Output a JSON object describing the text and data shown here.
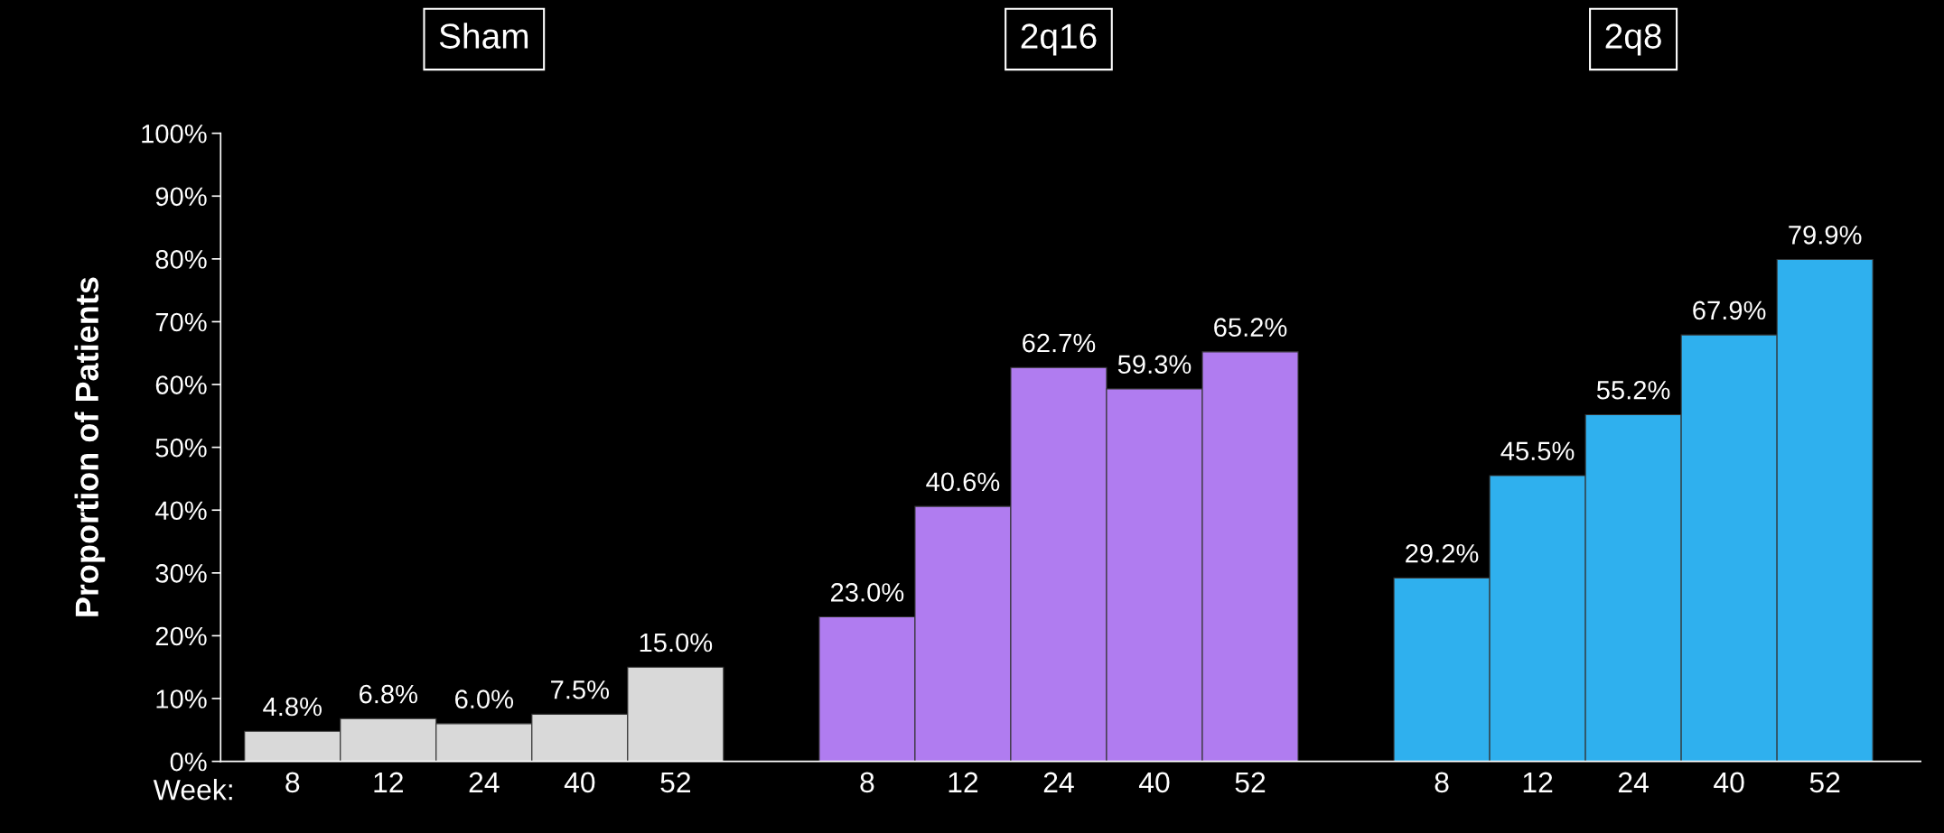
{
  "chart_data": {
    "type": "bar",
    "ylabel": "Proportion of Patients",
    "categories": [
      "8",
      "12",
      "24",
      "40",
      "52",
      null,
      "8",
      "12",
      "24",
      "40",
      "52",
      null,
      "8",
      "12",
      "24",
      "40",
      "52"
    ],
    "values": [
      4.8,
      6.8,
      6.0,
      7.5,
      15.0,
      null,
      23.0,
      40.6,
      62.7,
      59.3,
      65.2,
      null,
      29.2,
      45.5,
      55.2,
      67.9,
      79.9
    ],
    "colors": [
      "#d9d9d9",
      "#d9d9d9",
      "#d9d9d9",
      "#d9d9d9",
      "#d9d9d9",
      null,
      "#b07cf0",
      "#b07cf0",
      "#b07cf0",
      "#b07cf0",
      "#b07cf0",
      null,
      "#2fb0ee",
      "#2fb0ee",
      "#2fb0ee",
      "#2fb0ee",
      "#2fb0ee"
    ],
    "value_labels": [
      "4.8%",
      "6.8%",
      "6.0%",
      "7.5%",
      "15.0%",
      null,
      "23.0%",
      "40.6%",
      "62.7%",
      "59.3%",
      "65.2%",
      null,
      "29.2%",
      "45.5%",
      "55.2%",
      "67.9%",
      "79.9%"
    ],
    "ylim": [
      0,
      100
    ],
    "yticks": [
      {
        "value": 0,
        "label": "0%"
      },
      {
        "value": 10,
        "label": "10%"
      },
      {
        "value": 20,
        "label": "20%"
      },
      {
        "value": 30,
        "label": "30%"
      },
      {
        "value": 40,
        "label": "40%"
      },
      {
        "value": 50,
        "label": "50%"
      },
      {
        "value": 60,
        "label": "60%"
      },
      {
        "value": 70,
        "label": "70%"
      },
      {
        "value": 80,
        "label": "80%"
      },
      {
        "value": 90,
        "label": "90%"
      },
      {
        "value": 100,
        "label": "100%"
      }
    ],
    "annotations": [
      "Sham",
      "2q16",
      "2q8",
      "Week:"
    ],
    "grid": false,
    "legend": false
  }
}
